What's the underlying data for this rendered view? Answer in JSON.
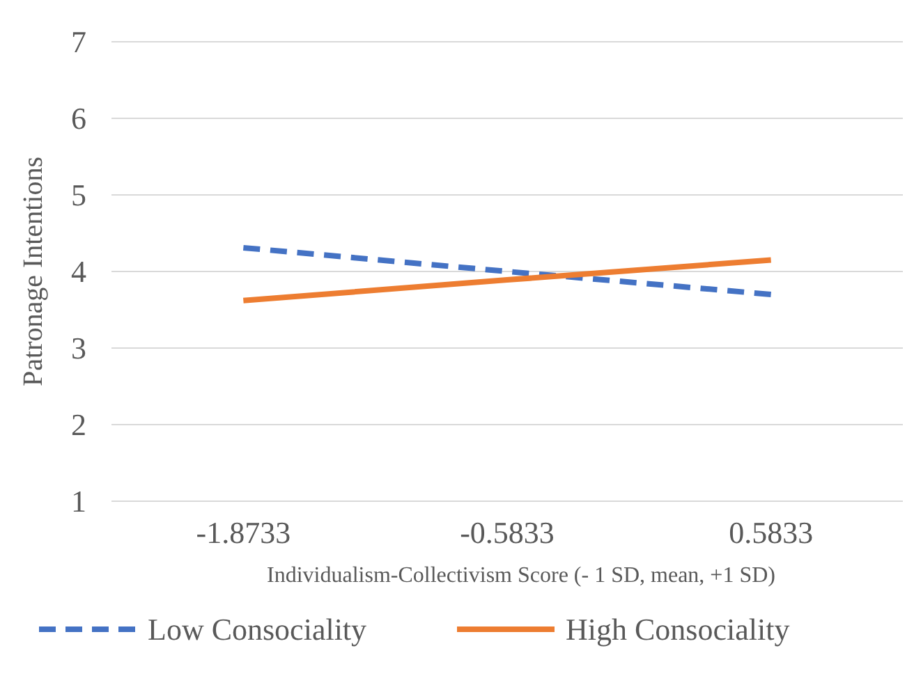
{
  "chart_data": {
    "type": "line",
    "xlabel": "Individualism-Collectivism Score (- 1 SD, mean, +1 SD)",
    "ylabel": "Patronage Intentions",
    "categories": [
      "-1.8733",
      "-0.5833",
      "0.5833"
    ],
    "ylim": [
      1,
      7
    ],
    "yticks": [
      1,
      2,
      3,
      4,
      5,
      6,
      7
    ],
    "grid": "y",
    "legend": "bottom",
    "marker": "none",
    "series": [
      {
        "name": "Low Consociality",
        "color": "#4472c4",
        "values": [
          4.31,
          4.0,
          3.7
        ],
        "line_style": "dashed"
      },
      {
        "name": "High Consociality",
        "color": "#ed7d31",
        "values": [
          3.62,
          3.89,
          4.15
        ],
        "line_style": "solid"
      }
    ]
  }
}
